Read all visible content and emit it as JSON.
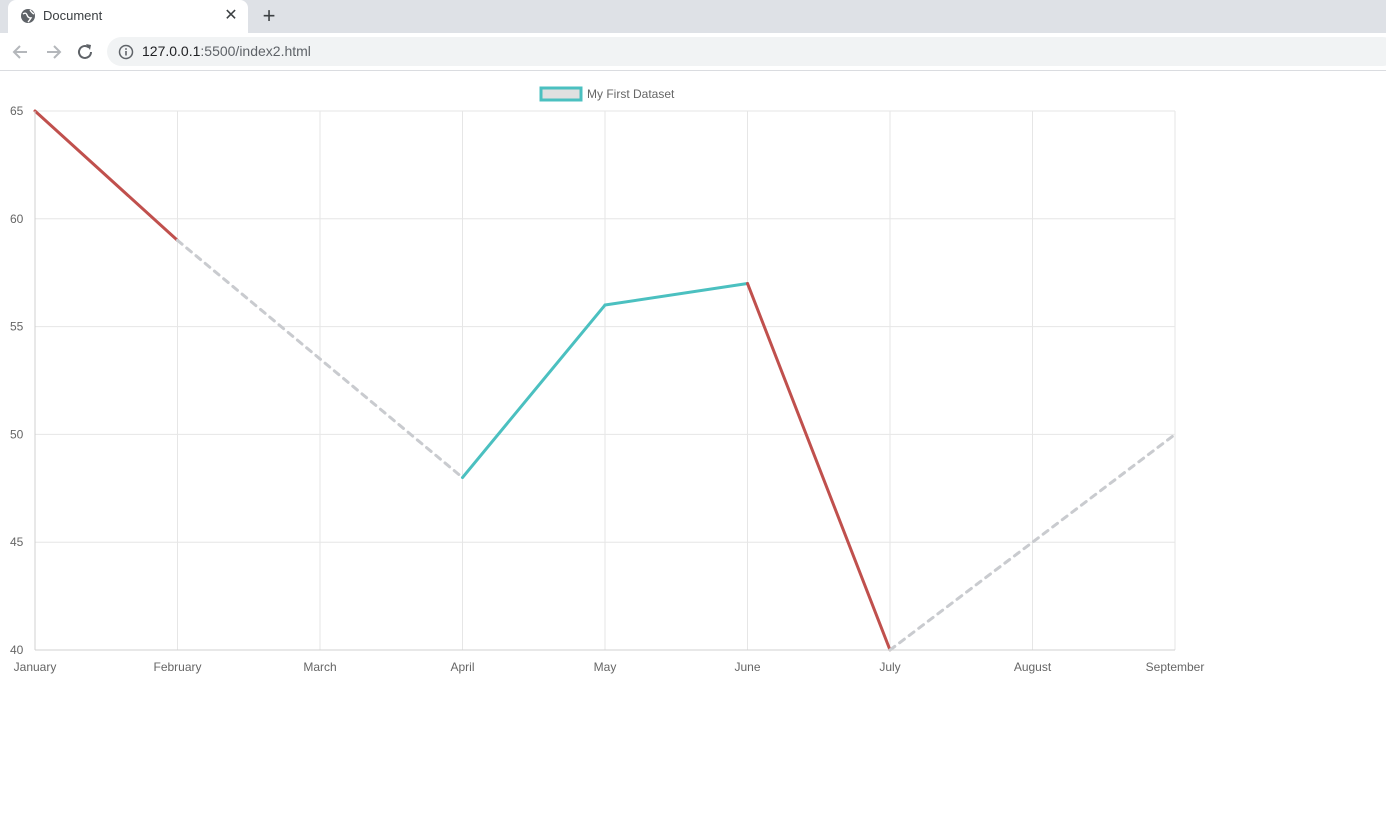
{
  "browser": {
    "tab_title": "Document",
    "url_host": "127.0.0.1",
    "url_path": ":5500/index2.html"
  },
  "colors": {
    "teal": "#4bc0c0",
    "red": "#c0504d",
    "gray_dashed": "#c9cbcf",
    "legend_fill": "#e0e0e0",
    "grid": "#e6e6e6"
  },
  "chart_data": {
    "type": "line",
    "categories": [
      "January",
      "February",
      "March",
      "April",
      "May",
      "June",
      "July",
      "August",
      "September"
    ],
    "series": [
      {
        "name": "My First Dataset",
        "values": [
          65,
          59,
          null,
          48,
          56,
          57,
          40,
          null,
          50
        ],
        "segment_styles": [
          "red-solid",
          "gray-dashed",
          "gray-dashed",
          "teal-solid",
          "teal-solid",
          "red-solid",
          "gray-dashed",
          "gray-dashed"
        ]
      }
    ],
    "title": "",
    "xlabel": "",
    "ylabel": "",
    "ylim": [
      40,
      65
    ],
    "yticks": [
      65,
      60,
      55,
      50,
      45,
      40
    ],
    "grid": true,
    "legend_position": "top-center"
  }
}
